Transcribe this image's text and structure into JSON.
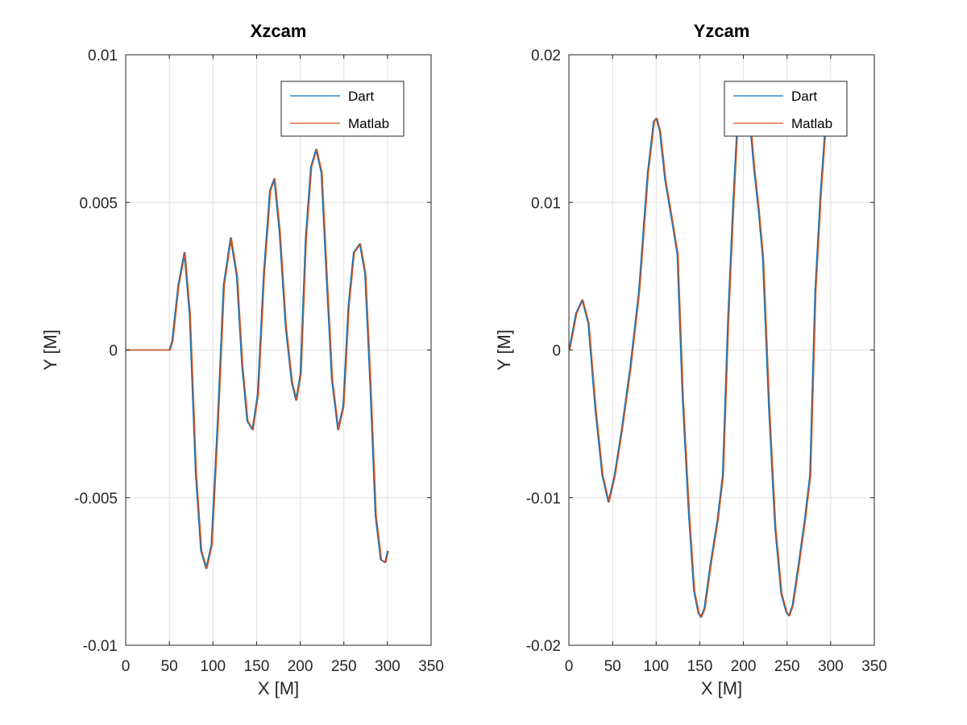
{
  "figure": {
    "colors": {
      "background": "#ffffff",
      "axes": "#262626",
      "grid": "#e0e0e0"
    }
  },
  "chart_data": [
    {
      "type": "line",
      "title": "Xzcam",
      "xlabel": "X [M]",
      "ylabel": "Y [M]",
      "xlim": [
        0,
        350
      ],
      "ylim": [
        -0.01,
        0.01
      ],
      "xticks": [
        0,
        50,
        100,
        150,
        200,
        250,
        300,
        350
      ],
      "xtick_labels": [
        "0",
        "50",
        "100",
        "150",
        "200",
        "250",
        "300",
        "350"
      ],
      "yticks": [
        -0.01,
        -0.005,
        0,
        0.005,
        0.01
      ],
      "ytick_labels": [
        "-0.01",
        "-0.005",
        "0",
        "0.005",
        "0.01"
      ],
      "grid": true,
      "legend": {
        "position": "top-right",
        "entries": [
          "Dart",
          "Matlab"
        ]
      },
      "series": [
        {
          "name": "Dart",
          "color": "#0072BD",
          "x": [
            0,
            50,
            53,
            60,
            67,
            73,
            80,
            86,
            92,
            98,
            105,
            112,
            120,
            127,
            133,
            139,
            145,
            151,
            158,
            165,
            170,
            176,
            183,
            190,
            195,
            200,
            206,
            212,
            218,
            224,
            230,
            236,
            243,
            249,
            255,
            261,
            268,
            274,
            280,
            286,
            292,
            297,
            300
          ],
          "y": [
            0,
            0,
            0.0003,
            0.0022,
            0.0033,
            0.0012,
            -0.0042,
            -0.0068,
            -0.0074,
            -0.0066,
            -0.0025,
            0.0022,
            0.0038,
            0.0025,
            -0.0005,
            -0.0024,
            -0.0027,
            -0.0015,
            0.0026,
            0.0054,
            0.0058,
            0.004,
            0.0008,
            -0.0011,
            -0.0017,
            -0.0008,
            0.0038,
            0.0062,
            0.0068,
            0.006,
            0.0024,
            -0.001,
            -0.0027,
            -0.0019,
            0.0015,
            0.0033,
            0.0036,
            0.0026,
            -0.0012,
            -0.0056,
            -0.0071,
            -0.0072,
            -0.0068
          ]
        },
        {
          "name": "Matlab",
          "color": "#D95319",
          "x": [
            0,
            50,
            53,
            60,
            67,
            73,
            80,
            86,
            92,
            98,
            105,
            112,
            120,
            127,
            133,
            139,
            145,
            151,
            158,
            165,
            170,
            176,
            183,
            190,
            195,
            200,
            206,
            212,
            218,
            224,
            230,
            236,
            243,
            249,
            255,
            261,
            268,
            274,
            280,
            286,
            292,
            297,
            300
          ],
          "y": [
            0,
            0,
            0.0003,
            0.0022,
            0.0033,
            0.0012,
            -0.0042,
            -0.0068,
            -0.0074,
            -0.0066,
            -0.0025,
            0.0022,
            0.0038,
            0.0025,
            -0.0005,
            -0.0024,
            -0.0027,
            -0.0015,
            0.0026,
            0.0054,
            0.0058,
            0.004,
            0.0008,
            -0.0011,
            -0.0017,
            -0.0008,
            0.0038,
            0.0062,
            0.0068,
            0.006,
            0.0024,
            -0.001,
            -0.0027,
            -0.0019,
            0.0015,
            0.0033,
            0.0036,
            0.0026,
            -0.0012,
            -0.0056,
            -0.0071,
            -0.0072,
            -0.0068
          ]
        }
      ]
    },
    {
      "type": "line",
      "title": "Yzcam",
      "xlabel": "X [M]",
      "ylabel": "Y [M]",
      "xlim": [
        0,
        350
      ],
      "ylim": [
        -0.02,
        0.02
      ],
      "xticks": [
        0,
        50,
        100,
        150,
        200,
        250,
        300,
        350
      ],
      "xtick_labels": [
        "0",
        "50",
        "100",
        "150",
        "200",
        "250",
        "300",
        "350"
      ],
      "yticks": [
        -0.02,
        -0.01,
        0,
        0.01,
        0.02
      ],
      "ytick_labels": [
        "-0.02",
        "-0.01",
        "0",
        "0.01",
        "0.02"
      ],
      "grid": true,
      "legend": {
        "position": "top-right",
        "entries": [
          "Dart",
          "Matlab"
        ]
      },
      "series": [
        {
          "name": "Dart",
          "color": "#0072BD",
          "x": [
            0,
            8,
            15,
            22,
            30,
            38,
            45,
            52,
            60,
            70,
            80,
            90,
            97,
            100,
            104,
            110,
            118,
            124,
            130,
            137,
            143,
            148,
            151,
            155,
            162,
            170,
            176,
            182,
            188,
            194,
            200,
            207,
            212,
            217,
            222,
            229,
            236,
            243,
            249,
            252,
            256,
            263,
            270,
            276,
            282,
            288,
            294
          ],
          "y": [
            0,
            0.0025,
            0.0034,
            0.0018,
            -0.004,
            -0.0085,
            -0.0103,
            -0.0085,
            -0.0055,
            -0.0012,
            0.004,
            0.012,
            0.0155,
            0.0157,
            0.0148,
            0.0115,
            0.0087,
            0.0065,
            -0.0032,
            -0.011,
            -0.0163,
            -0.0178,
            -0.0181,
            -0.0175,
            -0.0145,
            -0.0115,
            -0.0085,
            0.002,
            0.01,
            0.0168,
            0.0178,
            0.0156,
            0.0122,
            0.0095,
            0.0062,
            -0.004,
            -0.012,
            -0.0165,
            -0.0178,
            -0.018,
            -0.0173,
            -0.0145,
            -0.0115,
            -0.0085,
            0.004,
            0.0105,
            0.0155
          ]
        },
        {
          "name": "Matlab",
          "color": "#D95319",
          "x": [
            0,
            8,
            15,
            22,
            30,
            38,
            45,
            52,
            60,
            70,
            80,
            90,
            97,
            100,
            104,
            110,
            118,
            124,
            130,
            137,
            143,
            148,
            151,
            155,
            162,
            170,
            176,
            182,
            188,
            194,
            200,
            207,
            212,
            217,
            222,
            229,
            236,
            243,
            249,
            252,
            256,
            263,
            270,
            276,
            282,
            288,
            294
          ],
          "y": [
            0,
            0.0025,
            0.0034,
            0.0018,
            -0.004,
            -0.0085,
            -0.0103,
            -0.0085,
            -0.0055,
            -0.0012,
            0.004,
            0.012,
            0.0155,
            0.0157,
            0.0148,
            0.0115,
            0.0087,
            0.0065,
            -0.0032,
            -0.011,
            -0.0163,
            -0.0178,
            -0.0181,
            -0.0175,
            -0.0145,
            -0.0115,
            -0.0085,
            0.002,
            0.01,
            0.0168,
            0.0178,
            0.0156,
            0.0122,
            0.0095,
            0.0062,
            -0.004,
            -0.012,
            -0.0165,
            -0.0178,
            -0.018,
            -0.0173,
            -0.0145,
            -0.0115,
            -0.0085,
            0.004,
            0.0105,
            0.0155
          ]
        }
      ]
    }
  ]
}
